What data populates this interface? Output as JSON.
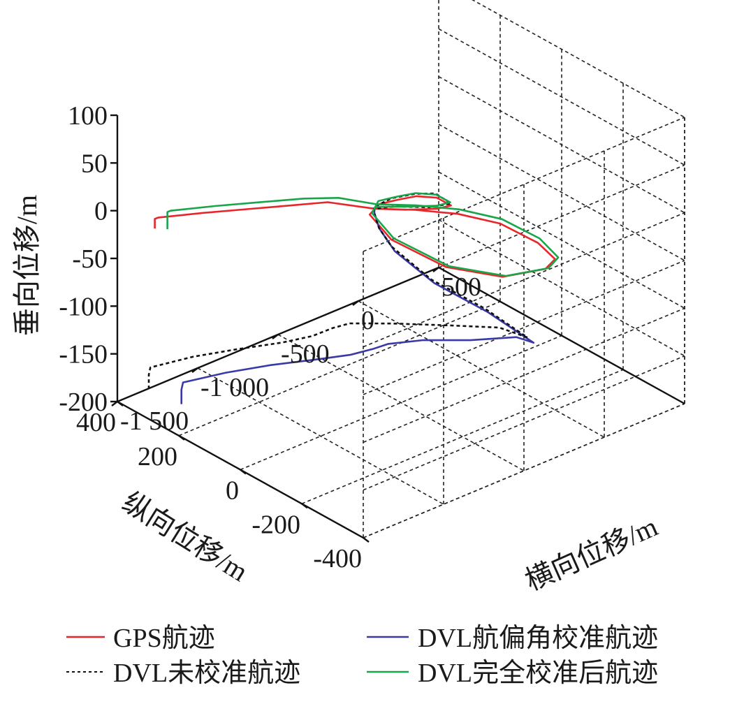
{
  "chart_data": {
    "type": "line",
    "subtype": "3d-trajectory",
    "title": "",
    "axes": {
      "x": {
        "label": "横向位移/m",
        "range": [
          -1500,
          500
        ],
        "ticks": [
          -1500,
          -1000,
          -500,
          0,
          500
        ],
        "tick_labels": [
          "-1 500",
          "-1 000",
          "-500",
          "0",
          "500"
        ]
      },
      "y": {
        "label": "纵向位移/m",
        "range": [
          -400,
          400
        ],
        "ticks": [
          -400,
          -200,
          0,
          200,
          400
        ],
        "tick_labels": [
          "-400",
          "-200",
          "0",
          "200",
          "400"
        ]
      },
      "z": {
        "label": "垂向位移/m",
        "range": [
          -200,
          100
        ],
        "ticks": [
          -200,
          -150,
          -100,
          -50,
          0,
          50,
          100
        ],
        "tick_labels": [
          "-200",
          "-150",
          "-100",
          "-50",
          "0",
          "50",
          "100"
        ]
      }
    },
    "grid": true,
    "legend_position": "bottom",
    "series": [
      {
        "name": "GPS航迹",
        "color": "#e8262a",
        "dash": "solid",
        "points": [
          [
            -1420,
            320,
            -10
          ],
          [
            -1420,
            320,
            0
          ],
          [
            -1400,
            320,
            0
          ],
          [
            -1200,
            280,
            -2
          ],
          [
            -1000,
            240,
            -5
          ],
          [
            -800,
            200,
            -8
          ],
          [
            -650,
            160,
            -8
          ],
          [
            -550,
            60,
            -4
          ],
          [
            -450,
            -20,
            2
          ],
          [
            -300,
            -80,
            -2
          ],
          [
            -150,
            -140,
            -12
          ],
          [
            -30,
            -200,
            -30
          ],
          [
            0,
            -240,
            -42
          ],
          [
            -60,
            -240,
            -48
          ],
          [
            -250,
            -200,
            -50
          ],
          [
            -450,
            -120,
            -40
          ],
          [
            -560,
            0,
            -25
          ],
          [
            -580,
            60,
            -8
          ],
          [
            -560,
            40,
            5
          ],
          [
            -520,
            0,
            14
          ],
          [
            -480,
            -40,
            22
          ],
          [
            -430,
            -80,
            24
          ],
          [
            -380,
            -100,
            16
          ],
          [
            -390,
            -60,
            6
          ],
          [
            -470,
            0,
            0
          ],
          [
            -550,
            60,
            -4
          ]
        ]
      },
      {
        "name": "DVL航偏角校准航迹",
        "color": "#3a3aa6",
        "dash": "solid",
        "points": [
          [
            -1350,
            270,
            -190
          ],
          [
            -1350,
            270,
            -175
          ],
          [
            -1340,
            270,
            -168
          ],
          [
            -1150,
            230,
            -164
          ],
          [
            -950,
            190,
            -163
          ],
          [
            -750,
            140,
            -162
          ],
          [
            -640,
            90,
            -156
          ],
          [
            -600,
            40,
            -144
          ],
          [
            -560,
            10,
            -136
          ],
          [
            -400,
            -20,
            -138
          ],
          [
            -220,
            -80,
            -140
          ],
          [
            -50,
            -140,
            -138
          ],
          [
            0,
            -170,
            -142
          ],
          [
            -150,
            -100,
            -112
          ],
          [
            -350,
            -30,
            -80
          ],
          [
            -500,
            20,
            -45
          ],
          [
            -560,
            40,
            -20
          ],
          [
            -570,
            50,
            -5
          ],
          [
            -550,
            60,
            -4
          ]
        ]
      },
      {
        "name": "DVL未校准航迹",
        "color": "#111111",
        "dash": "dashed",
        "points": [
          [
            -1400,
            350,
            -185
          ],
          [
            -1400,
            350,
            -170
          ],
          [
            -1390,
            350,
            -163
          ],
          [
            -1200,
            310,
            -158
          ],
          [
            -1000,
            270,
            -157
          ],
          [
            -800,
            230,
            -157
          ],
          [
            -670,
            200,
            -154
          ],
          [
            -620,
            160,
            -142
          ],
          [
            -590,
            120,
            -132
          ],
          [
            -440,
            60,
            -132
          ],
          [
            -250,
            -20,
            -133
          ],
          [
            -80,
            -100,
            -133
          ],
          [
            0,
            -150,
            -140
          ],
          [
            -150,
            -90,
            -110
          ],
          [
            -350,
            -20,
            -78
          ],
          [
            -500,
            30,
            -42
          ],
          [
            -560,
            40,
            -20
          ],
          [
            -570,
            50,
            -6
          ],
          [
            -555,
            60,
            -2
          ],
          [
            -520,
            20,
            12
          ],
          [
            -470,
            -30,
            22
          ],
          [
            -420,
            -70,
            26
          ],
          [
            -380,
            -100,
            18
          ],
          [
            -420,
            -50,
            8
          ],
          [
            -500,
            20,
            2
          ],
          [
            -550,
            60,
            -4
          ]
        ]
      },
      {
        "name": "DVL完全校准后航迹",
        "color": "#1aa54a",
        "dash": "solid",
        "points": [
          [
            -1380,
            300,
            -10
          ],
          [
            -1380,
            300,
            8
          ],
          [
            -1360,
            300,
            8
          ],
          [
            -1160,
            260,
            6
          ],
          [
            -960,
            220,
            3
          ],
          [
            -760,
            180,
            0
          ],
          [
            -620,
            140,
            -2
          ],
          [
            -540,
            60,
            0
          ],
          [
            -440,
            -20,
            6
          ],
          [
            -290,
            -80,
            2
          ],
          [
            -140,
            -140,
            -8
          ],
          [
            -20,
            -200,
            -26
          ],
          [
            10,
            -245,
            -40
          ],
          [
            -50,
            -245,
            -47
          ],
          [
            -240,
            -205,
            -49
          ],
          [
            -440,
            -125,
            -39
          ],
          [
            -555,
            -5,
            -23
          ],
          [
            -575,
            55,
            -6
          ],
          [
            -555,
            45,
            7
          ],
          [
            -515,
            5,
            16
          ],
          [
            -475,
            -35,
            24
          ],
          [
            -425,
            -75,
            26
          ],
          [
            -375,
            -95,
            18
          ],
          [
            -385,
            -55,
            8
          ],
          [
            -465,
            5,
            2
          ],
          [
            -545,
            58,
            -2
          ]
        ]
      }
    ]
  }
}
